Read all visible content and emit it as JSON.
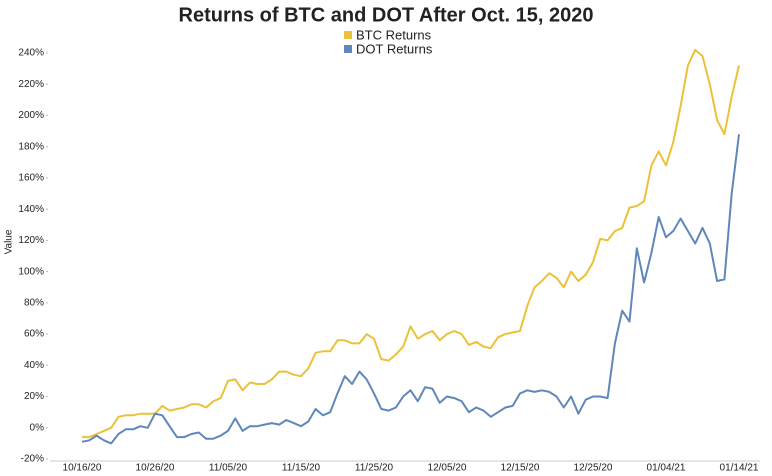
{
  "chart_data": {
    "type": "line",
    "title": "Returns of BTC and DOT After Oct. 15, 2020",
    "y_label": "Value",
    "categories": [
      "10/16/20",
      null,
      null,
      null,
      null,
      null,
      null,
      null,
      null,
      null,
      "10/26/20",
      null,
      null,
      null,
      null,
      null,
      null,
      null,
      null,
      null,
      "11/05/20",
      null,
      null,
      null,
      null,
      null,
      null,
      null,
      null,
      null,
      "11/15/20",
      null,
      null,
      null,
      null,
      null,
      null,
      null,
      null,
      null,
      "11/25/20",
      null,
      null,
      null,
      null,
      null,
      null,
      null,
      null,
      null,
      "12/05/20",
      null,
      null,
      null,
      null,
      null,
      null,
      null,
      null,
      null,
      "12/15/20",
      null,
      null,
      null,
      null,
      null,
      null,
      null,
      null,
      null,
      "12/25/20",
      null,
      null,
      null,
      null,
      null,
      null,
      null,
      null,
      null,
      "01/04/21",
      null,
      null,
      null,
      null,
      null,
      null,
      null,
      null,
      null,
      "01/14/21"
    ],
    "series": [
      {
        "name": "BTC Returns",
        "color": "#ecc13a",
        "values": [
          -6,
          -6,
          -4,
          -2,
          0,
          7,
          8,
          8,
          9,
          9,
          9,
          14,
          11,
          12,
          13,
          15,
          15,
          13,
          17,
          19,
          30,
          31,
          24,
          29,
          28,
          28,
          31,
          36,
          36,
          34,
          33,
          38,
          48,
          49,
          49,
          56,
          56,
          54,
          54,
          60,
          57,
          44,
          43,
          47,
          52,
          65,
          57,
          60,
          62,
          56,
          60,
          62,
          60,
          53,
          55,
          52,
          51,
          58,
          60,
          61,
          62,
          78,
          90,
          94,
          99,
          96,
          90,
          100,
          94,
          98,
          106,
          121,
          120,
          126,
          128,
          141,
          142,
          145,
          168,
          177,
          168,
          183,
          206,
          232,
          242,
          238,
          220,
          197,
          188,
          212,
          232
        ]
      },
      {
        "name": "DOT Returns",
        "color": "#5f87bb",
        "values": [
          -9,
          -8,
          -5,
          -8,
          -10,
          -4,
          -1,
          -1,
          1,
          0,
          9,
          8,
          1,
          -6,
          -6,
          -4,
          -3,
          -7,
          -7,
          -5,
          -2,
          6,
          -2,
          1,
          1,
          2,
          3,
          2,
          5,
          3,
          1,
          4,
          12,
          8,
          10,
          22,
          33,
          28,
          36,
          31,
          22,
          12,
          11,
          13,
          20,
          24,
          17,
          26,
          25,
          16,
          20,
          19,
          17,
          10,
          13,
          11,
          7,
          10,
          13,
          14,
          22,
          24,
          23,
          24,
          23,
          20,
          13,
          20,
          9,
          18,
          20,
          20,
          19,
          54,
          75,
          68,
          115,
          93,
          112,
          135,
          122,
          126,
          134,
          126,
          118,
          128,
          118,
          94,
          95,
          150,
          188
        ]
      }
    ],
    "ylim": [
      -20,
      240
    ],
    "yticks": [
      {
        "value": -20,
        "label": "-20%"
      },
      {
        "value": 0,
        "label": "0%"
      },
      {
        "value": 20,
        "label": "20%"
      },
      {
        "value": 40,
        "label": "40%"
      },
      {
        "value": 60,
        "label": "60%"
      },
      {
        "value": 80,
        "label": "80%"
      },
      {
        "value": 100,
        "label": "100%"
      },
      {
        "value": 120,
        "label": "120%"
      },
      {
        "value": 140,
        "label": "140%"
      },
      {
        "value": 160,
        "label": "160%"
      },
      {
        "value": 180,
        "label": "180%"
      },
      {
        "value": 200,
        "label": "200%"
      },
      {
        "value": 220,
        "label": "220%"
      },
      {
        "value": 240,
        "label": "240%"
      }
    ],
    "grid": false,
    "legend": "top"
  }
}
